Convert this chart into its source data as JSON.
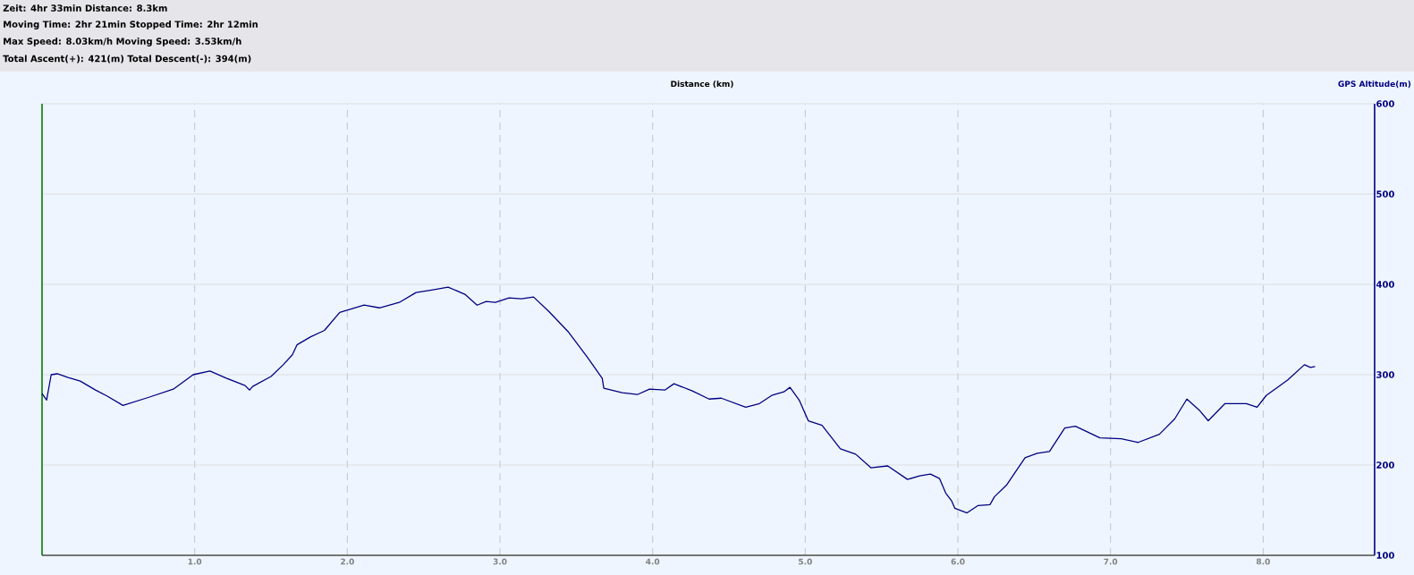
{
  "chart_data": {
    "type": "line",
    "annotations": [
      "Zeit: 4hr 33min   Distance: 8.3km",
      "Moving Time: 2hr 21min   Stopped Time: 2hr 12min",
      "Max Speed: 8.03km/h   Moving Speed: 3.53km/h",
      "Total Ascent(+): 421(m)   Total Descent(-): 394(m)"
    ],
    "xlabel": "Distance (km)",
    "ylabel": "GPS Altitude(m)",
    "xlim": [
      0,
      8.73
    ],
    "ylim": [
      100,
      600
    ],
    "xticks": [
      {
        "value": 1,
        "label": "1.0"
      },
      {
        "value": 2,
        "label": "2.0"
      },
      {
        "value": 3,
        "label": "3.0"
      },
      {
        "value": 4,
        "label": "4.0"
      },
      {
        "value": 5,
        "label": "5.0"
      },
      {
        "value": 6,
        "label": "6.0"
      },
      {
        "value": 7,
        "label": "7.0"
      },
      {
        "value": 8,
        "label": "8.0"
      }
    ],
    "yticks": [
      100,
      200,
      300,
      400,
      500,
      600
    ],
    "grid": true,
    "marker": "none",
    "line_style": "solid",
    "series": [
      {
        "color": "#000080",
        "x": [
          0.0,
          0.03,
          0.06,
          0.1,
          0.17,
          0.25,
          0.35,
          0.43,
          0.53,
          0.7,
          0.86,
          0.99,
          1.1,
          1.21,
          1.33,
          1.36,
          1.38,
          1.5,
          1.58,
          1.64,
          1.67,
          1.76,
          1.85,
          1.95,
          2.11,
          2.21,
          2.34,
          2.45,
          2.56,
          2.66,
          2.77,
          2.85,
          2.91,
          2.97,
          3.06,
          3.14,
          3.22,
          3.32,
          3.45,
          3.57,
          3.67,
          3.68,
          3.8,
          3.9,
          3.98,
          4.08,
          4.14,
          4.26,
          4.37,
          4.45,
          4.61,
          4.7,
          4.78,
          4.86,
          4.9,
          4.96,
          5.02,
          5.11,
          5.23,
          5.33,
          5.43,
          5.54,
          5.67,
          5.75,
          5.82,
          5.88,
          5.92,
          5.96,
          5.98,
          6.06,
          6.13,
          6.21,
          6.24,
          6.32,
          6.44,
          6.52,
          6.6,
          6.7,
          6.77,
          6.93,
          7.07,
          7.18,
          7.32,
          7.42,
          7.5,
          7.58,
          7.64,
          7.75,
          7.89,
          7.96,
          8.02,
          8.16,
          8.27,
          8.31,
          8.34
        ],
        "values": [
          279,
          272,
          300,
          301,
          297,
          293,
          283,
          276,
          266,
          275,
          284,
          300,
          304,
          296,
          288,
          283,
          287,
          298,
          311,
          322,
          333,
          342,
          349,
          369,
          377,
          374,
          380,
          391,
          394,
          397,
          389,
          377,
          381,
          380,
          385,
          384,
          386,
          370,
          347,
          320,
          296,
          285,
          280,
          278,
          284,
          283,
          290,
          282,
          273,
          274,
          264,
          268,
          277,
          281,
          286,
          272,
          249,
          244,
          218,
          212,
          197,
          199,
          184,
          188,
          190,
          185,
          169,
          160,
          152,
          147,
          155,
          156,
          165,
          178,
          208,
          213,
          215,
          241,
          243,
          230,
          229,
          225,
          234,
          251,
          273,
          261,
          249,
          268,
          268,
          264,
          277,
          294,
          311,
          308,
          309
        ]
      }
    ]
  }
}
